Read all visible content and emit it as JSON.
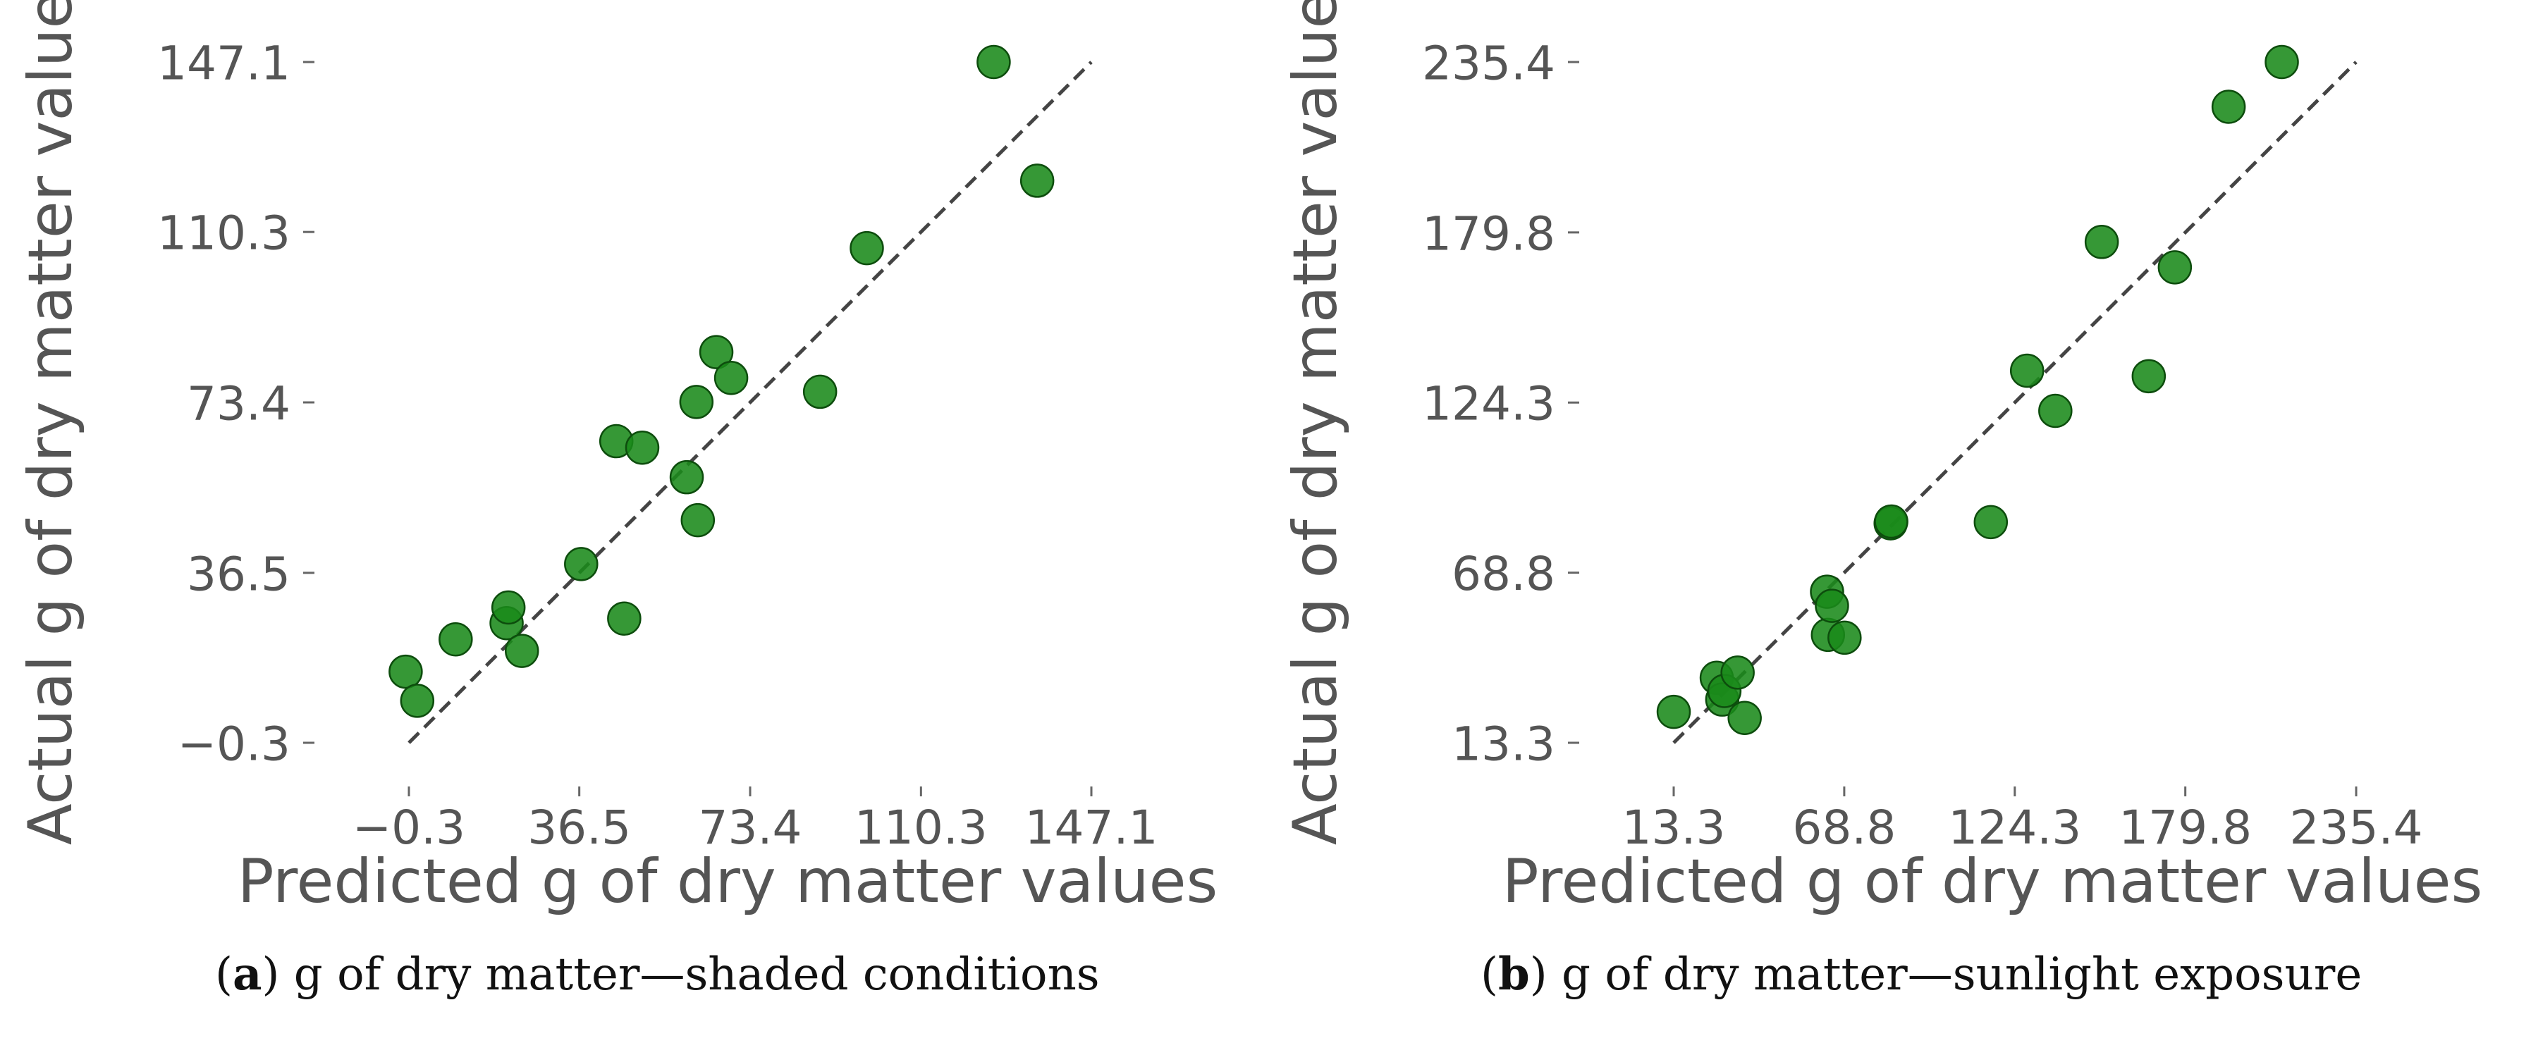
{
  "chart_data": [
    {
      "type": "scatter",
      "title": "",
      "xlabel": "Predicted g of dry matter values",
      "ylabel": "Actual g of dry matter values",
      "xlim": [
        -0.3,
        147.1
      ],
      "ylim": [
        -0.3,
        147.1
      ],
      "xticks": [
        "−0.3",
        "36.5",
        "73.4",
        "110.3",
        "147.1"
      ],
      "yticks": [
        "−0.3",
        "36.5",
        "73.4",
        "110.3",
        "147.1"
      ],
      "tick_values": [
        -0.3,
        36.5,
        73.4,
        110.3,
        147.1
      ],
      "identity_line": true,
      "grid": false,
      "marker_color": "#1a8a1a",
      "line_color": "#444444",
      "x": [
        -1.0,
        1.5,
        9.8,
        20.8,
        21.2,
        24.1,
        36.9,
        46.2,
        44.5,
        50.1,
        59.7,
        61.8,
        62.1,
        66.1,
        69.3,
        88.5,
        98.6,
        126.0,
        135.4
      ],
      "y": [
        15.1,
        8.8,
        22.1,
        25.6,
        29.0,
        19.6,
        38.4,
        26.6,
        65.0,
        63.6,
        57.2,
        73.5,
        47.9,
        84.3,
        78.7,
        75.7,
        106.8,
        147.1,
        121.4
      ],
      "caption_letter": "a",
      "caption_text": "g of dry matter—shaded conditions"
    },
    {
      "type": "scatter",
      "title": "",
      "xlabel": "Predicted g of dry matter values",
      "ylabel": "Actual g of dry matter values",
      "xlim": [
        13.3,
        235.4
      ],
      "ylim": [
        13.3,
        235.4
      ],
      "xticks": [
        "13.3",
        "68.8",
        "124.3",
        "179.8",
        "235.4"
      ],
      "yticks": [
        "13.3",
        "68.8",
        "124.3",
        "179.8",
        "235.4"
      ],
      "tick_values": [
        13.3,
        68.8,
        124.3,
        179.8,
        235.4
      ],
      "identity_line": true,
      "grid": false,
      "marker_color": "#1a8a1a",
      "line_color": "#444444",
      "x": [
        13.3,
        27.3,
        29.1,
        29.8,
        34.1,
        36.4,
        63.2,
        63.5,
        64.8,
        68.9,
        83.9,
        84.1,
        116.5,
        128.3,
        137.5,
        152.6,
        167.9,
        176.4,
        193.9,
        211.2
      ],
      "y": [
        23.4,
        34.5,
        27.4,
        30.2,
        36.2,
        21.4,
        62.6,
        48.5,
        58.0,
        47.6,
        84.9,
        85.5,
        85.3,
        134.7,
        121.6,
        176.7,
        132.9,
        168.4,
        220.8,
        235.4
      ],
      "caption_letter": "b",
      "caption_text": "g of dry matter—sunlight exposure"
    }
  ]
}
